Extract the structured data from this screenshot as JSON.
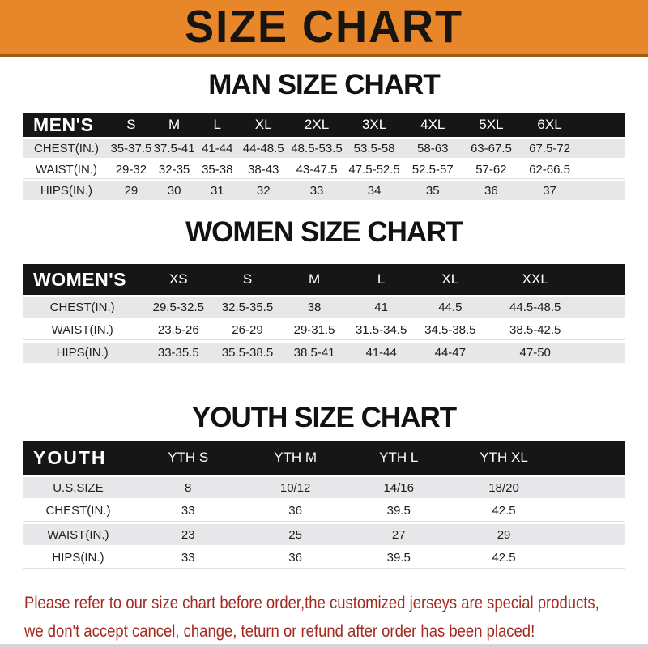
{
  "banner": {
    "title": "SIZE CHART",
    "bg_color": "#E8862A",
    "text_color": "#171512"
  },
  "colors": {
    "header_bar": "#161616",
    "row_stripe": "#E7E7EA",
    "footer_text": "#A42A20"
  },
  "sections": [
    {
      "heading": "MAN SIZE CHART",
      "table": {
        "corner": "MEN'S",
        "columns": [
          "S",
          "M",
          "L",
          "XL",
          "2XL",
          "3XL",
          "4XL",
          "5XL",
          "6XL"
        ],
        "rows": [
          {
            "label": "CHEST(IN.)",
            "values": [
              "35-37.5",
              "37.5-41",
              "41-44",
              "44-48.5",
              "48.5-53.5",
              "53.5-58",
              "58-63",
              "63-67.5",
              "67.5-72"
            ]
          },
          {
            "label": "WAIST(IN.)",
            "values": [
              "29-32",
              "32-35",
              "35-38",
              "38-43",
              "43-47.5",
              "47.5-52.5",
              "52.5-57",
              "57-62",
              "62-66.5"
            ]
          },
          {
            "label": "HIPS(IN.)",
            "values": [
              "29",
              "30",
              "31",
              "32",
              "33",
              "34",
              "35",
              "36",
              "37"
            ]
          }
        ]
      }
    },
    {
      "heading": "WOMEN SIZE CHART",
      "table": {
        "corner": "WOMEN'S",
        "columns": [
          "XS",
          "S",
          "M",
          "L",
          "XL",
          "XXL"
        ],
        "rows": [
          {
            "label": "CHEST(IN.)",
            "values": [
              "29.5-32.5",
              "32.5-35.5",
              "38",
              "41",
              "44.5",
              "44.5-48.5"
            ]
          },
          {
            "label": "WAIST(IN.)",
            "values": [
              "23.5-26",
              "26-29",
              "29-31.5",
              "31.5-34.5",
              "34.5-38.5",
              "38.5-42.5"
            ]
          },
          {
            "label": "HIPS(IN.)",
            "values": [
              "33-35.5",
              "35.5-38.5",
              "38.5-41",
              "41-44",
              "44-47",
              "47-50"
            ]
          }
        ]
      }
    },
    {
      "heading": "YOUTH SIZE CHART",
      "table": {
        "corner": "YOUTH",
        "columns": [
          "YTH S",
          "YTH M",
          "YTH L",
          "YTH XL"
        ],
        "rows": [
          {
            "label": "U.S.SIZE",
            "values": [
              "8",
              "10/12",
              "14/16",
              "18/20"
            ]
          },
          {
            "label": "CHEST(IN.)",
            "values": [
              "33",
              "36",
              "39.5",
              "42.5"
            ]
          },
          {
            "label": "WAIST(IN.)",
            "values": [
              "23",
              "25",
              "27",
              "29"
            ]
          },
          {
            "label": "HIPS(IN.)",
            "values": [
              "33",
              "36",
              "39.5",
              "42.5"
            ]
          }
        ]
      }
    }
  ],
  "footer": {
    "line1": "Please refer to our size chart before order,the customized jerseys are special products,",
    "line2": "we don't accept cancel, change, teturn or refund after order has been placed!"
  }
}
